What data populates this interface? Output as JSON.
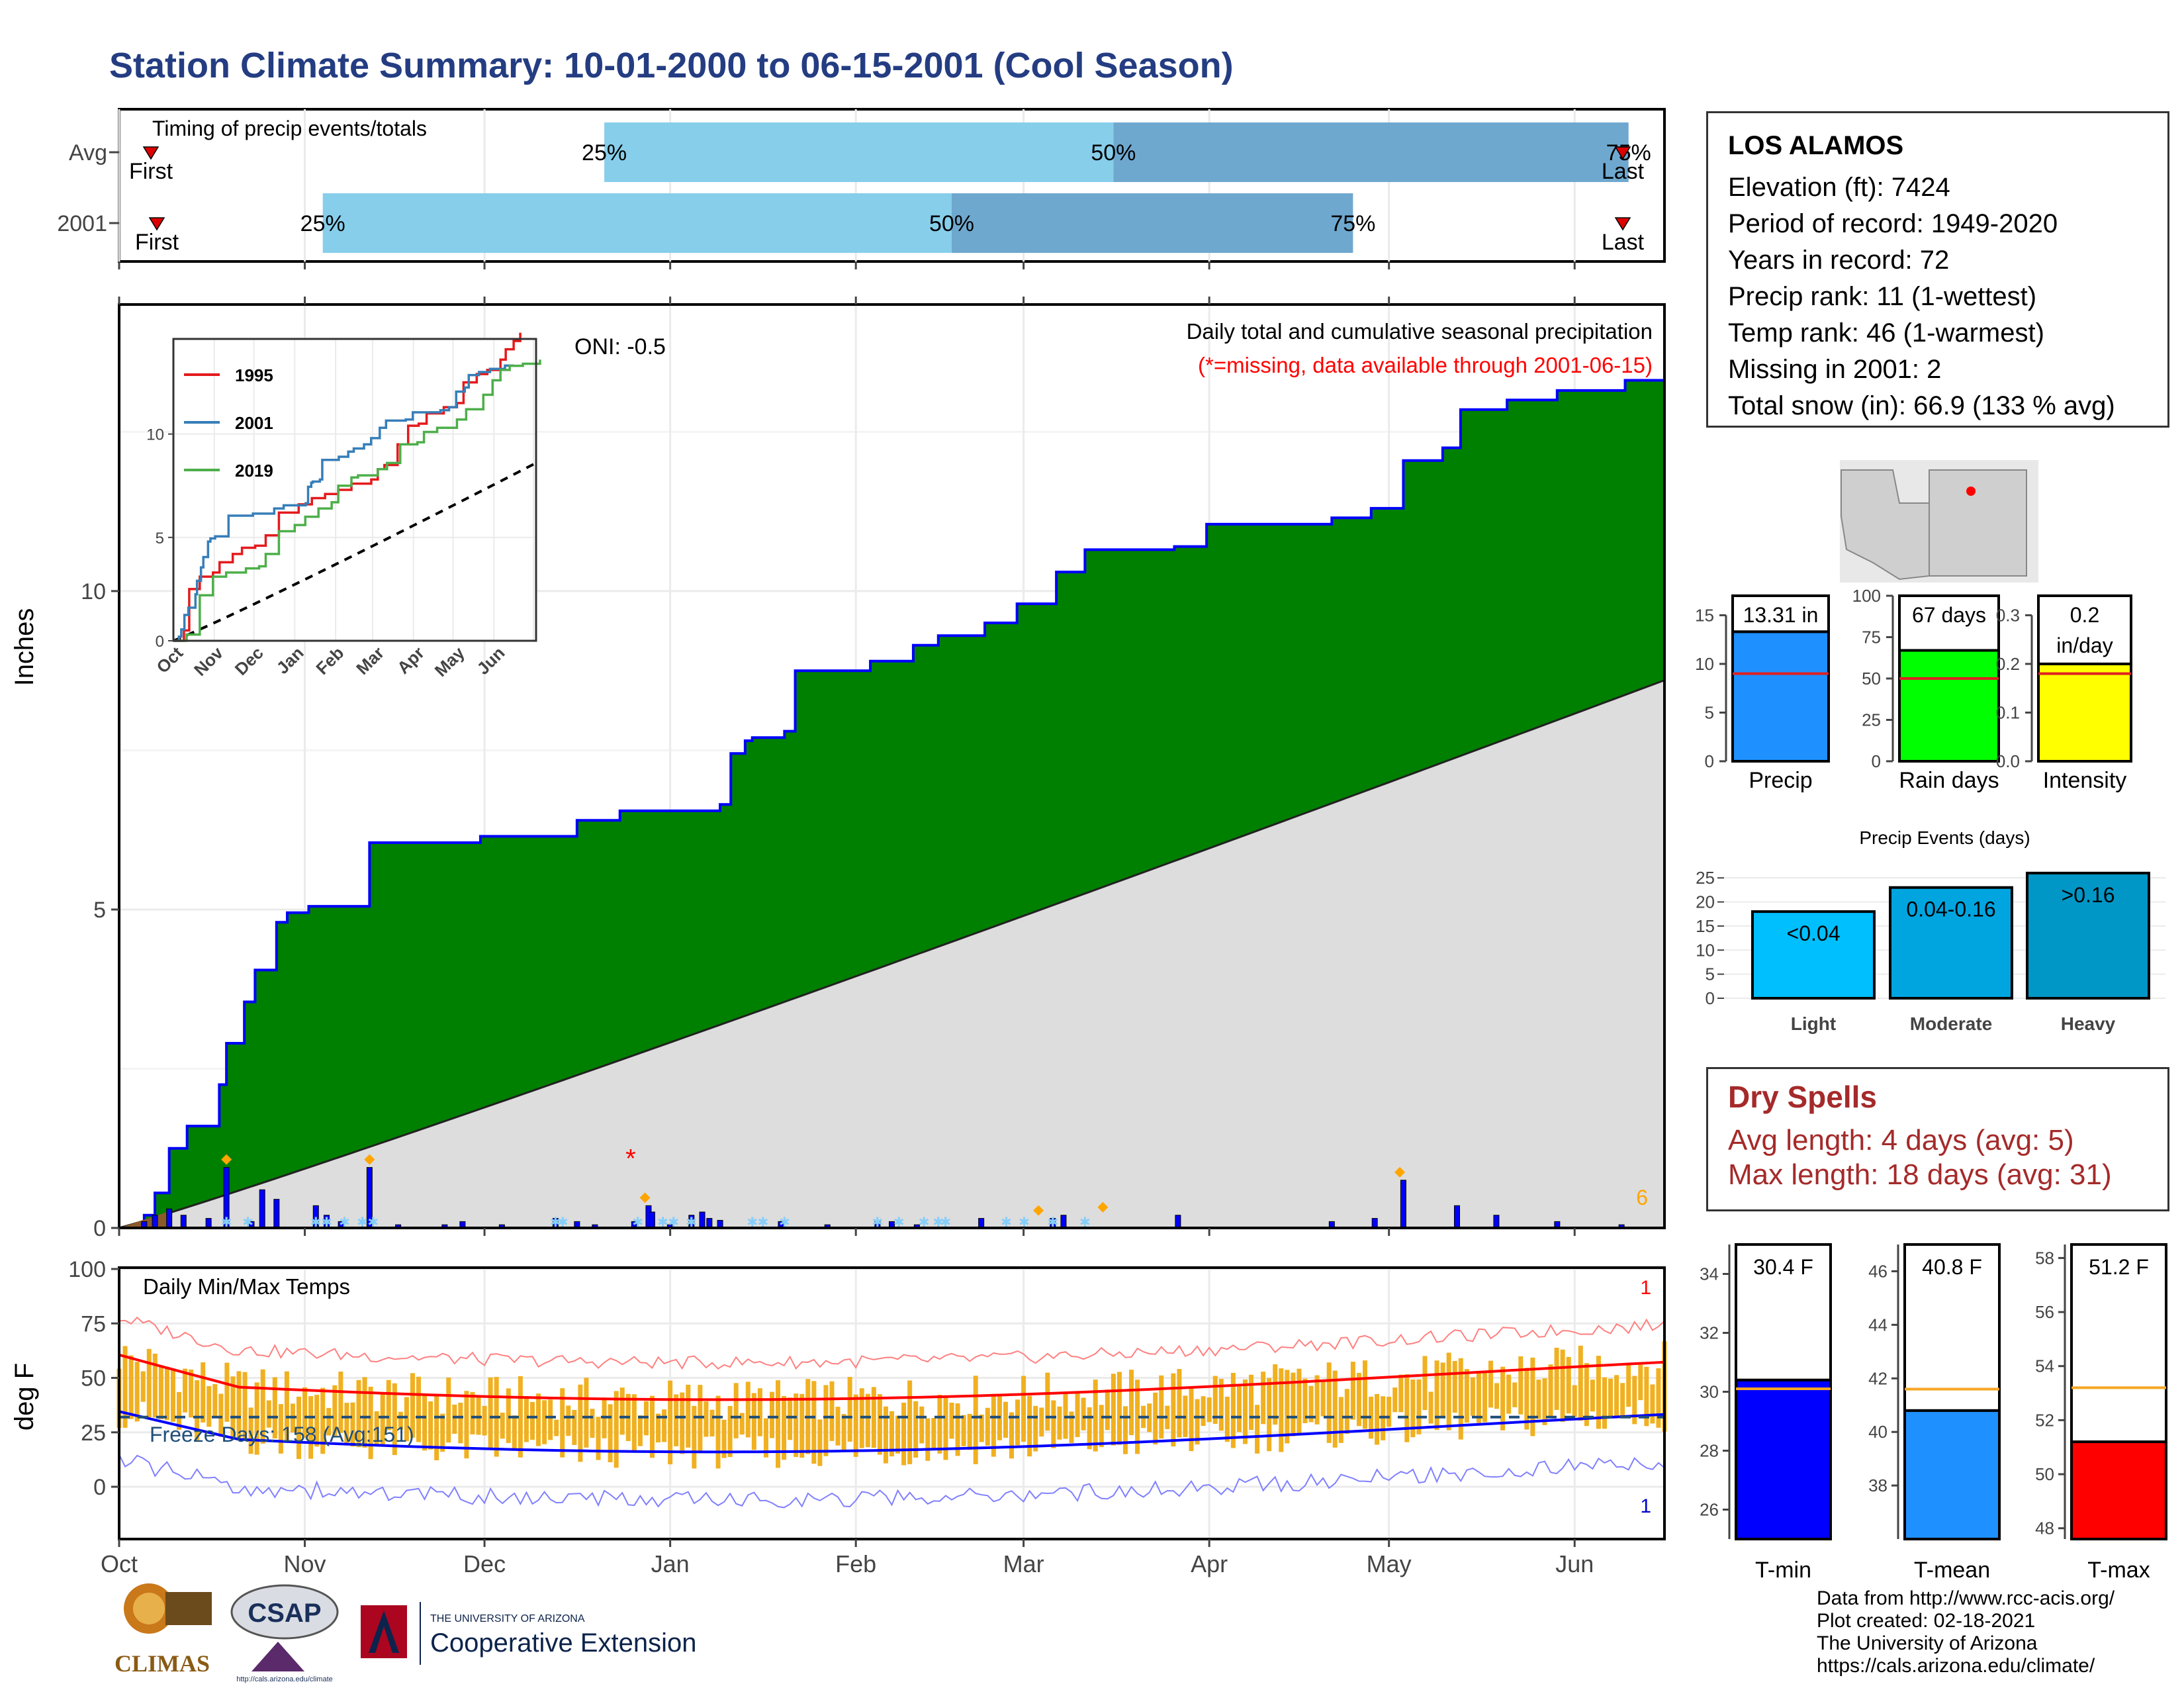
{
  "title": "Station Climate Summary: 10-01-2000 to 06-15-2001 (Cool Season)",
  "colors": {
    "title": "#243d82",
    "precip_cum": "#008000",
    "precip_line": "#0000ff",
    "climo_fill": "#dddddd",
    "daily_bar": "#0000ff",
    "snow": "#87cefa",
    "tmax_line": "#ff0000",
    "tmin_line": "#0000ff",
    "temp_bar": "#f0b020",
    "light": "#00bfff",
    "moderate": "#00a5e0",
    "heavy": "#0097c7",
    "precip_bar": "#1e90ff",
    "rain_bar": "#00ff00",
    "intensity_bar": "#ffff00",
    "tmin_bar": "#0000ff",
    "tmean_bar": "#1e90ff",
    "tmax_bar": "#ff0000",
    "dry": "#a52a2a"
  },
  "timing": {
    "label": "Timing of precip events/totals",
    "rows": [
      {
        "name": "Avg",
        "first": "First",
        "last": "Last",
        "p25": "25%",
        "p50": "50%",
        "p75": "75%",
        "q25_day": 81,
        "q50_day": 166,
        "q75_day": 252
      },
      {
        "name": "2001",
        "first": "First",
        "last": "Last",
        "p25": "25%",
        "p50": "50%",
        "p75": "75%",
        "q25_day": 34,
        "q50_day": 139,
        "q75_day": 206
      }
    ]
  },
  "infobox": {
    "station": "LOS ALAMOS",
    "lines": [
      "Elevation (ft): 7424",
      "Period of record: 1949-2020",
      "Years in record: 72",
      "Precip rank: 11 (1-wettest)",
      "Temp rank: 46 (1-warmest)",
      "Missing in 2001: 2",
      "Total snow (in): 66.9 (133 % avg)"
    ]
  },
  "precip_panel": {
    "ylabel": "Inches",
    "subtitle": "Daily total and cumulative seasonal precipitation",
    "missing_note": "(*=missing, data available through 2001-06-15)",
    "oni": "ONI: -0.5",
    "corner_count": "6",
    "yticks": [
      "0",
      "5",
      "10"
    ],
    "months": [
      "Oct",
      "Nov",
      "Dec",
      "Jan",
      "Feb",
      "Mar",
      "Apr",
      "May",
      "Jun"
    ],
    "cum_steps": [
      [
        0,
        0
      ],
      [
        7,
        0.2
      ],
      [
        10,
        0.55
      ],
      [
        14,
        1.25
      ],
      [
        19,
        1.6
      ],
      [
        28,
        2.25
      ],
      [
        30,
        2.9
      ],
      [
        35,
        3.55
      ],
      [
        38,
        4.05
      ],
      [
        44,
        4.8
      ],
      [
        47,
        4.95
      ],
      [
        53,
        5.05
      ],
      [
        70,
        6.05
      ],
      [
        95,
        6.05
      ],
      [
        101,
        6.15
      ],
      [
        122,
        6.15
      ],
      [
        128,
        6.4
      ],
      [
        140,
        6.55
      ],
      [
        162,
        6.55
      ],
      [
        168,
        6.65
      ],
      [
        171,
        7.45
      ],
      [
        175,
        7.65
      ],
      [
        177,
        7.7
      ],
      [
        186,
        7.8
      ],
      [
        189,
        8.75
      ],
      [
        210,
        8.9
      ],
      [
        222,
        9.15
      ],
      [
        229,
        9.3
      ],
      [
        242,
        9.5
      ],
      [
        251,
        9.8
      ],
      [
        262,
        10.3
      ],
      [
        270,
        10.65
      ],
      [
        295,
        10.7
      ],
      [
        304,
        11.05
      ],
      [
        335,
        11.05
      ],
      [
        339,
        11.15
      ],
      [
        350,
        11.3
      ],
      [
        359,
        12.05
      ],
      [
        370,
        12.25
      ],
      [
        375,
        12.85
      ],
      [
        388,
        13.0
      ],
      [
        402,
        13.15
      ],
      [
        421,
        13.31
      ],
      [
        432,
        13.31
      ]
    ],
    "climo_final": 8.6,
    "daily_bars": [
      [
        7,
        0.1
      ],
      [
        10,
        0.2
      ],
      [
        14,
        0.3
      ],
      [
        18,
        0.2
      ],
      [
        25,
        0.15
      ],
      [
        30,
        0.95
      ],
      [
        37,
        0.1
      ],
      [
        40,
        0.6
      ],
      [
        44,
        0.45
      ],
      [
        55,
        0.35
      ],
      [
        58,
        0.2
      ],
      [
        62,
        0.1
      ],
      [
        70,
        0.95
      ],
      [
        78,
        0.05
      ],
      [
        91,
        0.05
      ],
      [
        96,
        0.1
      ],
      [
        107,
        0.05
      ],
      [
        122,
        0.15
      ],
      [
        128,
        0.1
      ],
      [
        133,
        0.05
      ],
      [
        144,
        0.1
      ],
      [
        148,
        0.35
      ],
      [
        149,
        0.25
      ],
      [
        154,
        0.05
      ],
      [
        160,
        0.2
      ],
      [
        163,
        0.25
      ],
      [
        165,
        0.15
      ],
      [
        168,
        0.12
      ],
      [
        185,
        0.1
      ],
      [
        198,
        0.05
      ],
      [
        212,
        0.1
      ],
      [
        216,
        0.1
      ],
      [
        223,
        0.05
      ],
      [
        241,
        0.15
      ],
      [
        261,
        0.15
      ],
      [
        264,
        0.2
      ],
      [
        296,
        0.2
      ],
      [
        339,
        0.1
      ],
      [
        351,
        0.15
      ],
      [
        359,
        0.75
      ],
      [
        374,
        0.35
      ],
      [
        385,
        0.2
      ],
      [
        402,
        0.1
      ],
      [
        420,
        0.05
      ]
    ],
    "snow_days": [
      30,
      36,
      55,
      58,
      63,
      68,
      71,
      122,
      124,
      145,
      152,
      155,
      160,
      177,
      180,
      186,
      212,
      218,
      225,
      229,
      231,
      248,
      253,
      261,
      270
    ],
    "snow_markers": [
      30,
      70,
      147,
      257,
      275,
      358
    ],
    "missing_day": 143,
    "inset": {
      "yticks": [
        "0",
        "5",
        "10"
      ],
      "months": [
        "Oct",
        "Nov",
        "Dec",
        "Jan",
        "Feb",
        "Mar",
        "Apr",
        "May",
        "Jun"
      ],
      "series": [
        {
          "name": "1995",
          "color": "#e41a1c",
          "pts": [
            [
              0,
              0
            ],
            [
              8,
              0.5
            ],
            [
              12,
              2.5
            ],
            [
              20,
              3.1
            ],
            [
              30,
              3.3
            ],
            [
              35,
              3.8
            ],
            [
              45,
              4.2
            ],
            [
              52,
              4.5
            ],
            [
              62,
              4.6
            ],
            [
              70,
              5.1
            ],
            [
              80,
              6.2
            ],
            [
              95,
              6.6
            ],
            [
              105,
              6.9
            ],
            [
              115,
              7.1
            ],
            [
              125,
              7.3
            ],
            [
              135,
              7.6
            ],
            [
              150,
              7.8
            ],
            [
              155,
              8.3
            ],
            [
              160,
              8.5
            ],
            [
              170,
              9.5
            ],
            [
              178,
              10.4
            ],
            [
              186,
              10.5
            ],
            [
              192,
              11.0
            ],
            [
              205,
              11.3
            ],
            [
              215,
              11.5
            ],
            [
              220,
              12.5
            ],
            [
              230,
              12.9
            ],
            [
              238,
              13.1
            ],
            [
              248,
              13.6
            ],
            [
              252,
              14.1
            ],
            [
              258,
              14.5
            ],
            [
              263,
              14.9
            ]
          ]
        },
        {
          "name": "2001",
          "color": "#377eb8",
          "pts": [
            [
              0,
              0
            ],
            [
              7,
              0.2
            ],
            [
              10,
              0.55
            ],
            [
              14,
              1.25
            ],
            [
              19,
              1.6
            ],
            [
              28,
              2.25
            ],
            [
              30,
              2.9
            ],
            [
              35,
              3.55
            ],
            [
              38,
              4.05
            ],
            [
              44,
              4.8
            ],
            [
              47,
              4.95
            ],
            [
              53,
              5.05
            ],
            [
              70,
              6.05
            ],
            [
              95,
              6.05
            ],
            [
              101,
              6.15
            ],
            [
              122,
              6.15
            ],
            [
              128,
              6.4
            ],
            [
              140,
              6.55
            ],
            [
              162,
              6.55
            ],
            [
              168,
              6.65
            ],
            [
              171,
              7.45
            ],
            [
              175,
              7.65
            ],
            [
              177,
              7.7
            ],
            [
              186,
              7.8
            ],
            [
              189,
              8.75
            ],
            [
              210,
              8.9
            ],
            [
              222,
              9.15
            ],
            [
              229,
              9.3
            ],
            [
              242,
              9.5
            ],
            [
              251,
              9.8
            ],
            [
              262,
              10.3
            ],
            [
              270,
              10.65
            ],
            [
              295,
              10.7
            ],
            [
              304,
              11.05
            ],
            [
              335,
              11.05
            ],
            [
              339,
              11.15
            ],
            [
              350,
              11.3
            ],
            [
              359,
              12.05
            ],
            [
              370,
              12.25
            ],
            [
              375,
              12.85
            ],
            [
              388,
              13.0
            ],
            [
              402,
              13.15
            ],
            [
              421,
              13.31
            ],
            [
              432,
              13.31
            ]
          ]
        },
        {
          "name": "2019",
          "color": "#4daf4a",
          "pts": [
            [
              0,
              0
            ],
            [
              10,
              0.3
            ],
            [
              20,
              2.2
            ],
            [
              30,
              3.1
            ],
            [
              40,
              3.3
            ],
            [
              55,
              3.5
            ],
            [
              65,
              3.6
            ],
            [
              70,
              4.2
            ],
            [
              80,
              5.3
            ],
            [
              92,
              5.6
            ],
            [
              100,
              6.0
            ],
            [
              110,
              6.4
            ],
            [
              120,
              6.7
            ],
            [
              125,
              7.5
            ],
            [
              135,
              7.9
            ],
            [
              140,
              8.0
            ],
            [
              155,
              8.3
            ],
            [
              162,
              8.6
            ],
            [
              172,
              9.5
            ],
            [
              185,
              9.6
            ],
            [
              190,
              10.1
            ],
            [
              200,
              10.3
            ],
            [
              215,
              10.7
            ],
            [
              222,
              11.2
            ],
            [
              235,
              11.9
            ],
            [
              242,
              12.6
            ],
            [
              248,
              13.1
            ],
            [
              255,
              13.3
            ],
            [
              265,
              13.4
            ],
            [
              278,
              13.6
            ]
          ]
        }
      ],
      "climo_final": 8.6
    }
  },
  "temp_panel": {
    "ylabel": "deg F",
    "label": "Daily Min/Max Temps",
    "freeze": "Freeze Days: 158 (Avg:151)",
    "freeze_line": 32,
    "corner_top": "1",
    "corner_bottom": "1",
    "yticks": [
      "0",
      "25",
      "50",
      "75",
      "100"
    ],
    "months": [
      "Oct",
      "Nov",
      "Dec",
      "Jan",
      "Feb",
      "Mar",
      "Apr",
      "May",
      "Jun"
    ]
  },
  "season_bars": [
    {
      "label": "Precip",
      "value_label": "13.31 in",
      "value": 13.31,
      "avg": 9.0,
      "ymax": 17,
      "yticks": [
        0,
        5,
        10,
        15
      ],
      "color": "#1e90ff"
    },
    {
      "label": "Rain days",
      "value_label": "67 days",
      "value": 67,
      "avg": 50,
      "ymax": 100,
      "yticks": [
        0,
        25,
        50,
        75,
        100
      ],
      "color": "#00ff00"
    },
    {
      "label": "Intensity",
      "value_label": "0.2",
      "value_label2": "in/day",
      "value": 0.2,
      "avg": 0.18,
      "ymax": 0.34,
      "yticks": [
        0.0,
        0.1,
        0.2,
        0.3
      ],
      "color": "#ffff00"
    }
  ],
  "events": {
    "title": "Precip Events (days)",
    "yticks": [
      0,
      5,
      10,
      15,
      20,
      25
    ],
    "bars": [
      {
        "label": "<0.04",
        "cat": "Light",
        "value": 18,
        "color": "#00bfff"
      },
      {
        "label": "0.04-0.16",
        "cat": "Moderate",
        "value": 23,
        "color": "#00a5e0"
      },
      {
        "label": ">0.16",
        "cat": "Heavy",
        "value": 26,
        "color": "#0097c7"
      }
    ]
  },
  "dry_spells": {
    "title": "Dry Spells",
    "avg": "Avg length: 4 days (avg: 5)",
    "max": "Max length: 18 days (avg: 31)"
  },
  "temp_bars": [
    {
      "label": "T-min",
      "value_label": "30.4 F",
      "value": 30.4,
      "avg": 30.1,
      "ymin": 25,
      "ymax": 35,
      "yticks": [
        26,
        28,
        30,
        32,
        34
      ],
      "color": "#0000ff"
    },
    {
      "label": "T-mean",
      "value_label": "40.8 F",
      "value": 40.8,
      "avg": 41.6,
      "ymin": 36,
      "ymax": 47,
      "yticks": [
        38,
        40,
        42,
        44,
        46
      ],
      "color": "#1e90ff"
    },
    {
      "label": "T-max",
      "value_label": "51.2 F",
      "value": 51.2,
      "avg": 53.2,
      "ymin": 47.6,
      "ymax": 58.5,
      "yticks": [
        48,
        50,
        52,
        54,
        56,
        58
      ],
      "color": "#ff0000"
    }
  ],
  "credits": [
    "Data from http://www.rcc-acis.org/",
    "Plot created: 02-18-2021",
    "The University of Arizona",
    "https://cals.arizona.edu/climate/"
  ],
  "logos": {
    "climas": "CLIMAS",
    "csap": "CSAP",
    "csap_url": "http://cals.arizona.edu/climate",
    "ua_small": "THE UNIVERSITY OF ARIZONA",
    "ua_big": "Cooperative Extension"
  }
}
